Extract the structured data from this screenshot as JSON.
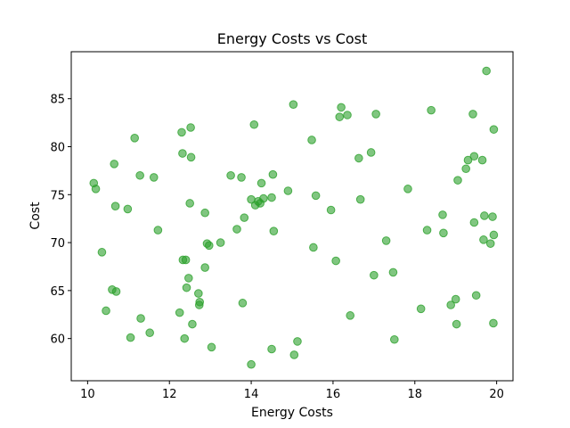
{
  "chart_data": {
    "type": "scatter",
    "title": "Energy Costs vs Cost",
    "xlabel": "Energy Costs",
    "ylabel": "Cost",
    "xlim": [
      9.6,
      20.4
    ],
    "ylim": [
      55.6,
      89.9
    ],
    "xticks": [
      10,
      12,
      14,
      16,
      18,
      20
    ],
    "yticks": [
      60,
      65,
      70,
      75,
      80,
      85
    ],
    "grid": false,
    "marker_color": "#2ca02c",
    "marker_alpha": 0.6,
    "points": [
      [
        10.15,
        76.2
      ],
      [
        10.2,
        75.6
      ],
      [
        10.35,
        69.0
      ],
      [
        10.45,
        62.9
      ],
      [
        10.6,
        65.1
      ],
      [
        10.65,
        78.2
      ],
      [
        10.68,
        73.8
      ],
      [
        10.7,
        64.9
      ],
      [
        10.98,
        73.5
      ],
      [
        11.05,
        60.1
      ],
      [
        11.15,
        80.9
      ],
      [
        11.28,
        77.0
      ],
      [
        11.3,
        62.1
      ],
      [
        11.52,
        60.6
      ],
      [
        11.62,
        76.8
      ],
      [
        11.72,
        71.3
      ],
      [
        12.25,
        62.7
      ],
      [
        12.3,
        81.5
      ],
      [
        12.32,
        79.3
      ],
      [
        12.33,
        68.2
      ],
      [
        12.4,
        68.2
      ],
      [
        12.37,
        60.0
      ],
      [
        12.42,
        65.3
      ],
      [
        12.47,
        66.3
      ],
      [
        12.5,
        74.1
      ],
      [
        12.52,
        82.0
      ],
      [
        12.53,
        78.9
      ],
      [
        12.56,
        61.5
      ],
      [
        12.71,
        64.7
      ],
      [
        12.73,
        63.5
      ],
      [
        12.74,
        63.8
      ],
      [
        12.87,
        73.1
      ],
      [
        12.87,
        67.4
      ],
      [
        12.92,
        69.9
      ],
      [
        12.97,
        69.7
      ],
      [
        13.03,
        59.1
      ],
      [
        13.25,
        70.0
      ],
      [
        13.5,
        77.0
      ],
      [
        13.65,
        71.4
      ],
      [
        13.76,
        76.8
      ],
      [
        13.79,
        63.7
      ],
      [
        13.83,
        72.6
      ],
      [
        14.0,
        57.3
      ],
      [
        14.0,
        74.5
      ],
      [
        14.07,
        82.3
      ],
      [
        14.1,
        73.9
      ],
      [
        14.17,
        74.3
      ],
      [
        14.22,
        74.1
      ],
      [
        14.25,
        76.2
      ],
      [
        14.3,
        74.6
      ],
      [
        14.5,
        74.7
      ],
      [
        14.53,
        77.1
      ],
      [
        14.55,
        71.2
      ],
      [
        14.5,
        58.9
      ],
      [
        14.9,
        75.4
      ],
      [
        15.03,
        84.4
      ],
      [
        15.05,
        58.3
      ],
      [
        15.13,
        59.7
      ],
      [
        15.48,
        80.7
      ],
      [
        15.52,
        69.5
      ],
      [
        15.58,
        74.9
      ],
      [
        15.95,
        73.4
      ],
      [
        16.07,
        68.1
      ],
      [
        16.16,
        83.1
      ],
      [
        16.2,
        84.1
      ],
      [
        16.35,
        83.3
      ],
      [
        16.42,
        62.4
      ],
      [
        16.63,
        78.8
      ],
      [
        16.67,
        74.5
      ],
      [
        16.93,
        79.4
      ],
      [
        17.0,
        66.6
      ],
      [
        17.05,
        83.4
      ],
      [
        17.3,
        70.2
      ],
      [
        17.47,
        66.9
      ],
      [
        17.5,
        59.9
      ],
      [
        17.83,
        75.6
      ],
      [
        18.15,
        63.1
      ],
      [
        18.3,
        71.3
      ],
      [
        18.4,
        83.8
      ],
      [
        18.68,
        72.9
      ],
      [
        18.7,
        71.0
      ],
      [
        18.88,
        63.5
      ],
      [
        19.0,
        64.1
      ],
      [
        19.02,
        61.5
      ],
      [
        19.05,
        76.5
      ],
      [
        19.25,
        77.7
      ],
      [
        19.3,
        78.6
      ],
      [
        19.42,
        83.4
      ],
      [
        19.45,
        79.0
      ],
      [
        19.45,
        72.1
      ],
      [
        19.5,
        64.5
      ],
      [
        19.65,
        78.6
      ],
      [
        19.68,
        70.3
      ],
      [
        19.7,
        72.8
      ],
      [
        19.75,
        87.9
      ],
      [
        19.85,
        69.9
      ],
      [
        19.9,
        72.7
      ],
      [
        19.93,
        70.8
      ],
      [
        19.92,
        61.6
      ],
      [
        19.93,
        81.8
      ]
    ]
  }
}
